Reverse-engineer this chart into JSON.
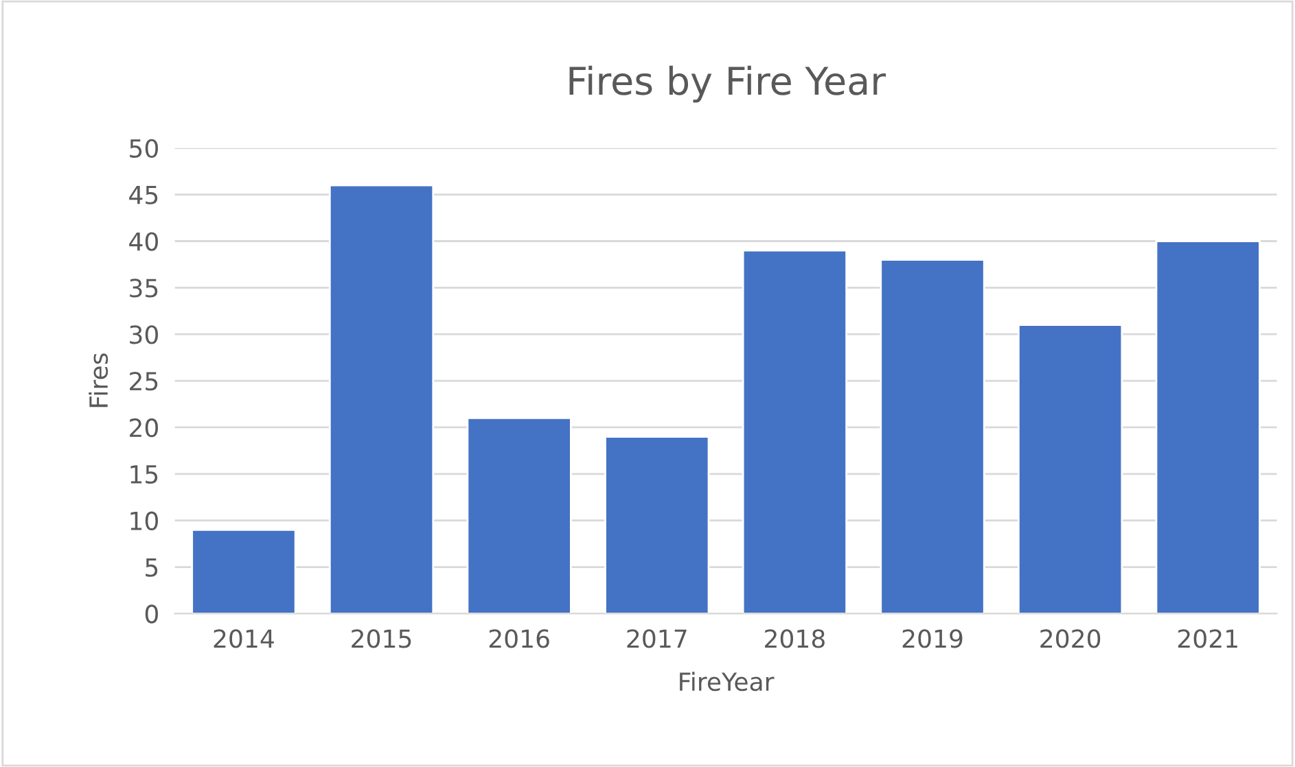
{
  "chart_data": {
    "type": "bar",
    "title": "Fires by Fire Year",
    "xlabel": "FireYear",
    "ylabel": "Fires",
    "categories": [
      "2014",
      "2015",
      "2016",
      "2017",
      "2018",
      "2019",
      "2020",
      "2021"
    ],
    "values": [
      9,
      46,
      21,
      19,
      39,
      38,
      31,
      40
    ],
    "color": "#4472c4",
    "ylim": [
      0,
      50
    ],
    "yticks": [
      0,
      5,
      10,
      15,
      20,
      25,
      30,
      35,
      40,
      45,
      50
    ],
    "grid": "y",
    "legend": false
  }
}
